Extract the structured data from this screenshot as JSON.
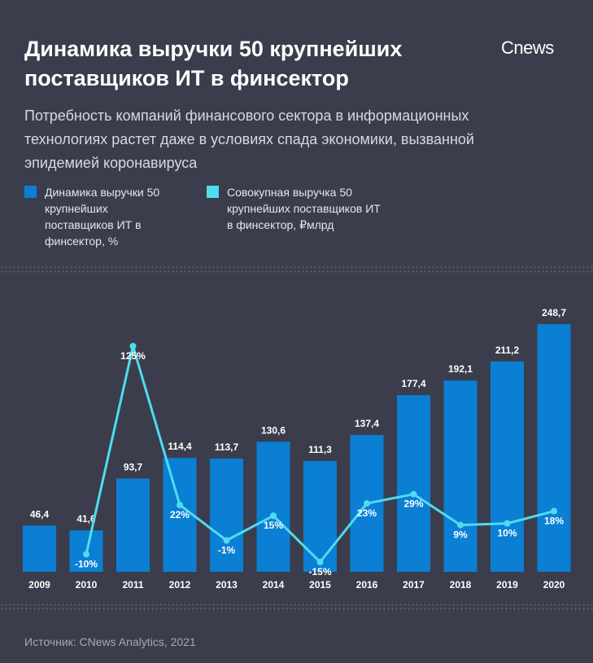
{
  "title": "Динамика выручки 50 крупнейших поставщиков ИТ в финсектор",
  "logo": "Cnews",
  "subtitle": "Потребность компаний финансового сектора в информационных технологиях растет даже в условиях спада экономики, вызванной эпидемией коронавируса",
  "source": "Источник: CNews Analytics, 2021",
  "colors": {
    "background": "#3b3d4c",
    "bar": "#0a7fd4",
    "line": "#4fdcf0"
  },
  "chart_data": {
    "type": "bar",
    "categories": [
      "2009",
      "2010",
      "2011",
      "2012",
      "2013",
      "2014",
      "2015",
      "2016",
      "2017",
      "2018",
      "2019",
      "2020"
    ],
    "series": [
      {
        "name": "Динамика выручки 50 крупнейших поставщиков ИТ в финсектор, %",
        "type": "line",
        "values": [
          null,
          -10,
          125,
          22,
          -1,
          15,
          -15,
          23,
          29,
          9,
          10,
          18
        ],
        "labels": [
          "",
          "-10%",
          "125%",
          "22%",
          "-1%",
          "15%",
          "-15%",
          "23%",
          "29%",
          "9%",
          "10%",
          "18%"
        ]
      },
      {
        "name": "Совокупная выручка 50 крупнейших поставщиков ИТ в финсектор, ₽млрд",
        "type": "bar",
        "values": [
          46.4,
          41.6,
          93.7,
          114.4,
          113.7,
          130.6,
          111.3,
          137.4,
          177.4,
          192.1,
          211.2,
          248.7
        ],
        "labels": [
          "46,4",
          "41,6",
          "93,7",
          "114,4",
          "113,7",
          "130,6",
          "111,3",
          "137,4",
          "177,4",
          "192,1",
          "211,2",
          "248,7"
        ]
      }
    ],
    "ylim_bars": [
      0,
      248.7
    ],
    "ylim_line": [
      -15,
      125
    ],
    "legend_position": "top-left",
    "grid": false
  }
}
